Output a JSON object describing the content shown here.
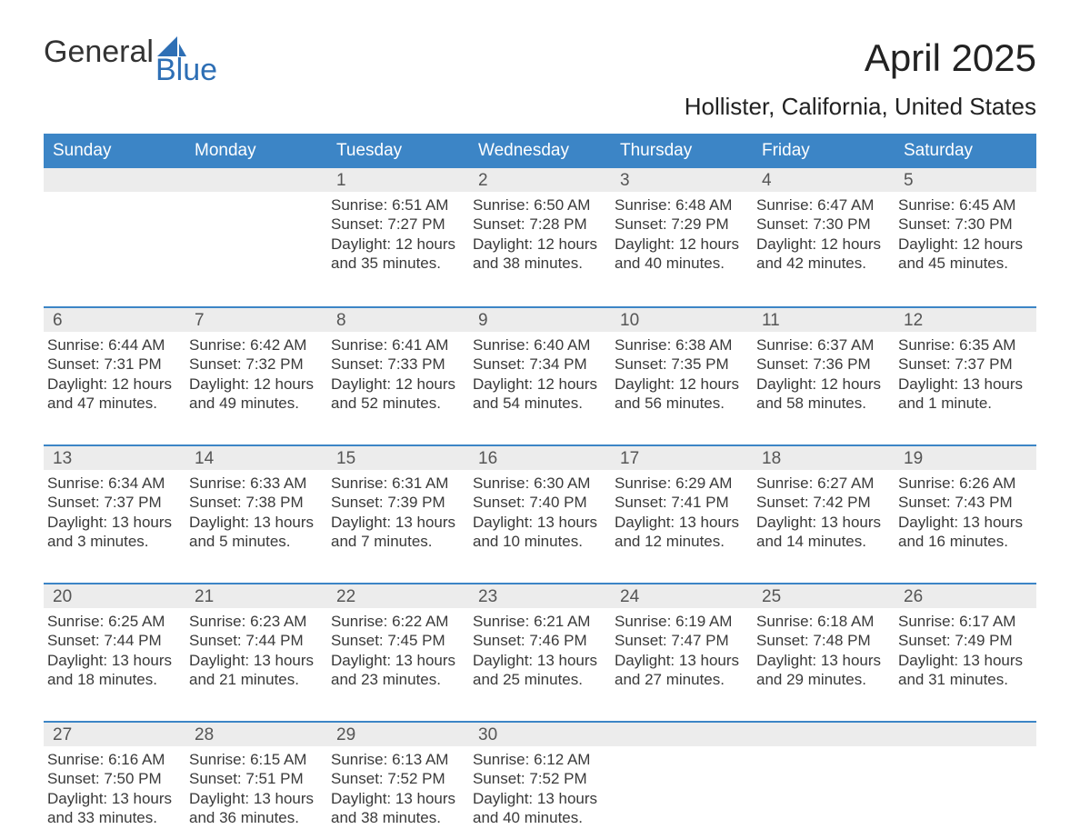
{
  "brand": {
    "word1": "General",
    "word2": "Blue"
  },
  "title": "April 2025",
  "location": "Hollister, California, United States",
  "colors": {
    "header_bg": "#3c85c6",
    "header_text": "#ffffff",
    "daynum_bg": "#ececec",
    "daynum_text": "#555555",
    "body_text": "#3a3a3a",
    "row_border": "#3c85c6",
    "page_bg": "#ffffff"
  },
  "typography": {
    "month_title_pt": 42,
    "location_pt": 26,
    "dow_pt": 19,
    "daynum_pt": 19,
    "body_pt": 17
  },
  "days_of_week": [
    "Sunday",
    "Monday",
    "Tuesday",
    "Wednesday",
    "Thursday",
    "Friday",
    "Saturday"
  ],
  "weeks": [
    [
      null,
      null,
      {
        "n": "1",
        "sunrise": "Sunrise: 6:51 AM",
        "sunset": "Sunset: 7:27 PM",
        "day1": "Daylight: 12 hours",
        "day2": "and 35 minutes."
      },
      {
        "n": "2",
        "sunrise": "Sunrise: 6:50 AM",
        "sunset": "Sunset: 7:28 PM",
        "day1": "Daylight: 12 hours",
        "day2": "and 38 minutes."
      },
      {
        "n": "3",
        "sunrise": "Sunrise: 6:48 AM",
        "sunset": "Sunset: 7:29 PM",
        "day1": "Daylight: 12 hours",
        "day2": "and 40 minutes."
      },
      {
        "n": "4",
        "sunrise": "Sunrise: 6:47 AM",
        "sunset": "Sunset: 7:30 PM",
        "day1": "Daylight: 12 hours",
        "day2": "and 42 minutes."
      },
      {
        "n": "5",
        "sunrise": "Sunrise: 6:45 AM",
        "sunset": "Sunset: 7:30 PM",
        "day1": "Daylight: 12 hours",
        "day2": "and 45 minutes."
      }
    ],
    [
      {
        "n": "6",
        "sunrise": "Sunrise: 6:44 AM",
        "sunset": "Sunset: 7:31 PM",
        "day1": "Daylight: 12 hours",
        "day2": "and 47 minutes."
      },
      {
        "n": "7",
        "sunrise": "Sunrise: 6:42 AM",
        "sunset": "Sunset: 7:32 PM",
        "day1": "Daylight: 12 hours",
        "day2": "and 49 minutes."
      },
      {
        "n": "8",
        "sunrise": "Sunrise: 6:41 AM",
        "sunset": "Sunset: 7:33 PM",
        "day1": "Daylight: 12 hours",
        "day2": "and 52 minutes."
      },
      {
        "n": "9",
        "sunrise": "Sunrise: 6:40 AM",
        "sunset": "Sunset: 7:34 PM",
        "day1": "Daylight: 12 hours",
        "day2": "and 54 minutes."
      },
      {
        "n": "10",
        "sunrise": "Sunrise: 6:38 AM",
        "sunset": "Sunset: 7:35 PM",
        "day1": "Daylight: 12 hours",
        "day2": "and 56 minutes."
      },
      {
        "n": "11",
        "sunrise": "Sunrise: 6:37 AM",
        "sunset": "Sunset: 7:36 PM",
        "day1": "Daylight: 12 hours",
        "day2": "and 58 minutes."
      },
      {
        "n": "12",
        "sunrise": "Sunrise: 6:35 AM",
        "sunset": "Sunset: 7:37 PM",
        "day1": "Daylight: 13 hours",
        "day2": "and 1 minute."
      }
    ],
    [
      {
        "n": "13",
        "sunrise": "Sunrise: 6:34 AM",
        "sunset": "Sunset: 7:37 PM",
        "day1": "Daylight: 13 hours",
        "day2": "and 3 minutes."
      },
      {
        "n": "14",
        "sunrise": "Sunrise: 6:33 AM",
        "sunset": "Sunset: 7:38 PM",
        "day1": "Daylight: 13 hours",
        "day2": "and 5 minutes."
      },
      {
        "n": "15",
        "sunrise": "Sunrise: 6:31 AM",
        "sunset": "Sunset: 7:39 PM",
        "day1": "Daylight: 13 hours",
        "day2": "and 7 minutes."
      },
      {
        "n": "16",
        "sunrise": "Sunrise: 6:30 AM",
        "sunset": "Sunset: 7:40 PM",
        "day1": "Daylight: 13 hours",
        "day2": "and 10 minutes."
      },
      {
        "n": "17",
        "sunrise": "Sunrise: 6:29 AM",
        "sunset": "Sunset: 7:41 PM",
        "day1": "Daylight: 13 hours",
        "day2": "and 12 minutes."
      },
      {
        "n": "18",
        "sunrise": "Sunrise: 6:27 AM",
        "sunset": "Sunset: 7:42 PM",
        "day1": "Daylight: 13 hours",
        "day2": "and 14 minutes."
      },
      {
        "n": "19",
        "sunrise": "Sunrise: 6:26 AM",
        "sunset": "Sunset: 7:43 PM",
        "day1": "Daylight: 13 hours",
        "day2": "and 16 minutes."
      }
    ],
    [
      {
        "n": "20",
        "sunrise": "Sunrise: 6:25 AM",
        "sunset": "Sunset: 7:44 PM",
        "day1": "Daylight: 13 hours",
        "day2": "and 18 minutes."
      },
      {
        "n": "21",
        "sunrise": "Sunrise: 6:23 AM",
        "sunset": "Sunset: 7:44 PM",
        "day1": "Daylight: 13 hours",
        "day2": "and 21 minutes."
      },
      {
        "n": "22",
        "sunrise": "Sunrise: 6:22 AM",
        "sunset": "Sunset: 7:45 PM",
        "day1": "Daylight: 13 hours",
        "day2": "and 23 minutes."
      },
      {
        "n": "23",
        "sunrise": "Sunrise: 6:21 AM",
        "sunset": "Sunset: 7:46 PM",
        "day1": "Daylight: 13 hours",
        "day2": "and 25 minutes."
      },
      {
        "n": "24",
        "sunrise": "Sunrise: 6:19 AM",
        "sunset": "Sunset: 7:47 PM",
        "day1": "Daylight: 13 hours",
        "day2": "and 27 minutes."
      },
      {
        "n": "25",
        "sunrise": "Sunrise: 6:18 AM",
        "sunset": "Sunset: 7:48 PM",
        "day1": "Daylight: 13 hours",
        "day2": "and 29 minutes."
      },
      {
        "n": "26",
        "sunrise": "Sunrise: 6:17 AM",
        "sunset": "Sunset: 7:49 PM",
        "day1": "Daylight: 13 hours",
        "day2": "and 31 minutes."
      }
    ],
    [
      {
        "n": "27",
        "sunrise": "Sunrise: 6:16 AM",
        "sunset": "Sunset: 7:50 PM",
        "day1": "Daylight: 13 hours",
        "day2": "and 33 minutes."
      },
      {
        "n": "28",
        "sunrise": "Sunrise: 6:15 AM",
        "sunset": "Sunset: 7:51 PM",
        "day1": "Daylight: 13 hours",
        "day2": "and 36 minutes."
      },
      {
        "n": "29",
        "sunrise": "Sunrise: 6:13 AM",
        "sunset": "Sunset: 7:52 PM",
        "day1": "Daylight: 13 hours",
        "day2": "and 38 minutes."
      },
      {
        "n": "30",
        "sunrise": "Sunrise: 6:12 AM",
        "sunset": "Sunset: 7:52 PM",
        "day1": "Daylight: 13 hours",
        "day2": "and 40 minutes."
      },
      null,
      null,
      null
    ]
  ]
}
